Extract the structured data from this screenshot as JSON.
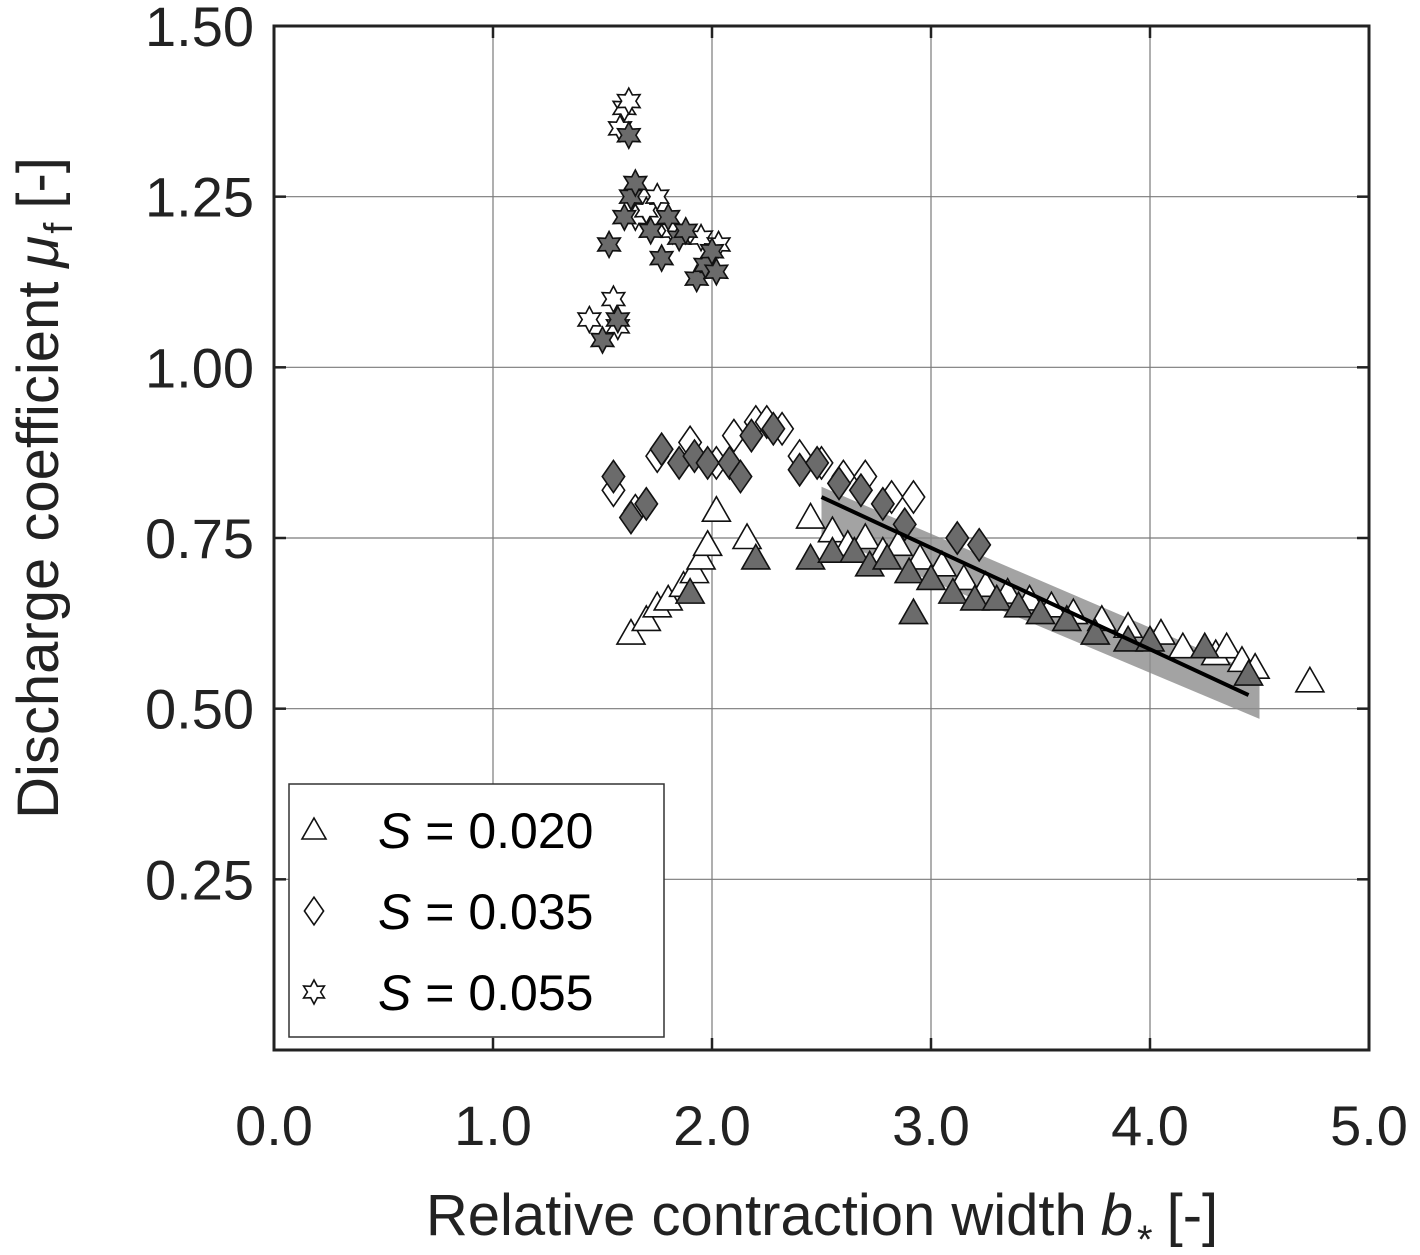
{
  "chart_data": {
    "type": "scatter",
    "title": "",
    "xlabel": "Relative contraction width",
    "xlabel_symbol": "b",
    "xlabel_subscript": "*",
    "xlabel_unit": "[-]",
    "ylabel": "Discharge coefficient",
    "ylabel_symbol": "μ",
    "ylabel_subscript": "f",
    "ylabel_unit": "[-]",
    "xlim": [
      0.0,
      5.0
    ],
    "ylim": [
      0.0,
      1.5
    ],
    "x_ticks": [
      "0.0",
      "1.0",
      "2.0",
      "3.0",
      "4.0",
      "5.0"
    ],
    "y_ticks": [
      "0.25",
      "0.50",
      "0.75",
      "1.00",
      "1.25",
      "1.50"
    ],
    "grid": true,
    "legend_position": "bottom-left",
    "legend": [
      {
        "prefix": "S",
        "text": " = 0.020",
        "marker": "triangle"
      },
      {
        "prefix": "S",
        "text": " = 0.035",
        "marker": "diamond"
      },
      {
        "prefix": "S",
        "text": " = 0.055",
        "marker": "star"
      }
    ],
    "fit_line": {
      "x": [
        2.5,
        4.45
      ],
      "y": [
        0.81,
        0.52
      ]
    },
    "fit_band": {
      "x": [
        2.5,
        4.5
      ],
      "y_upper": [
        0.825,
        0.55
      ],
      "y_lower": [
        0.755,
        0.485
      ]
    },
    "series": [
      {
        "marker": "triangle",
        "fill": "open",
        "x": [
          1.63,
          1.7,
          1.75,
          1.8,
          1.87,
          1.92,
          1.95,
          1.98,
          2.02,
          2.16,
          2.45,
          2.55,
          2.62,
          2.7,
          2.78,
          2.85,
          2.95,
          3.05,
          3.15,
          3.25,
          3.35,
          3.45,
          3.55,
          3.65,
          3.78,
          3.9,
          4.05,
          4.15,
          4.3,
          4.35,
          4.42,
          4.48,
          4.73
        ],
        "y": [
          0.61,
          0.63,
          0.65,
          0.66,
          0.68,
          0.7,
          0.72,
          0.74,
          0.79,
          0.75,
          0.78,
          0.76,
          0.74,
          0.75,
          0.73,
          0.74,
          0.72,
          0.71,
          0.69,
          0.68,
          0.67,
          0.66,
          0.65,
          0.64,
          0.63,
          0.62,
          0.61,
          0.59,
          0.58,
          0.59,
          0.57,
          0.56,
          0.54
        ]
      },
      {
        "marker": "triangle",
        "fill": "filled",
        "x": [
          1.9,
          2.2,
          2.45,
          2.55,
          2.65,
          2.72,
          2.8,
          2.9,
          2.92,
          3.0,
          3.1,
          3.2,
          3.3,
          3.4,
          3.5,
          3.62,
          3.75,
          3.9,
          4.0,
          4.25,
          4.45
        ],
        "y": [
          0.67,
          0.72,
          0.72,
          0.73,
          0.73,
          0.71,
          0.72,
          0.7,
          0.64,
          0.69,
          0.67,
          0.66,
          0.66,
          0.65,
          0.64,
          0.63,
          0.61,
          0.6,
          0.6,
          0.59,
          0.55
        ]
      },
      {
        "marker": "diamond",
        "fill": "open",
        "x": [
          1.55,
          1.65,
          1.75,
          1.9,
          2.02,
          2.1,
          2.2,
          2.25,
          2.32,
          2.4,
          2.5,
          2.6,
          2.7,
          2.82,
          2.92
        ],
        "y": [
          0.82,
          0.79,
          0.87,
          0.89,
          0.86,
          0.9,
          0.92,
          0.92,
          0.91,
          0.87,
          0.86,
          0.84,
          0.84,
          0.81,
          0.81
        ]
      },
      {
        "marker": "diamond",
        "fill": "filled",
        "x": [
          1.55,
          1.63,
          1.7,
          1.77,
          1.85,
          1.92,
          1.98,
          2.08,
          2.13,
          2.18,
          2.28,
          2.4,
          2.48,
          2.58,
          2.68,
          2.78,
          2.88,
          3.12,
          3.22
        ],
        "y": [
          0.84,
          0.78,
          0.8,
          0.88,
          0.86,
          0.87,
          0.86,
          0.86,
          0.84,
          0.9,
          0.91,
          0.85,
          0.86,
          0.83,
          0.82,
          0.8,
          0.77,
          0.75,
          0.74
        ]
      },
      {
        "marker": "star",
        "fill": "open",
        "x": [
          1.44,
          1.55,
          1.57,
          1.58,
          1.6,
          1.62,
          1.65,
          1.7,
          1.75,
          1.82,
          1.95,
          2.03
        ],
        "y": [
          1.07,
          1.1,
          1.06,
          1.35,
          1.38,
          1.39,
          1.22,
          1.23,
          1.25,
          1.2,
          1.19,
          1.18
        ]
      },
      {
        "marker": "star",
        "fill": "filled",
        "x": [
          1.5,
          1.53,
          1.57,
          1.6,
          1.62,
          1.63,
          1.65,
          1.72,
          1.77,
          1.8,
          1.85,
          1.88,
          1.93,
          1.97,
          2.0,
          2.02
        ],
        "y": [
          1.04,
          1.18,
          1.07,
          1.22,
          1.34,
          1.25,
          1.27,
          1.2,
          1.16,
          1.22,
          1.19,
          1.2,
          1.13,
          1.15,
          1.17,
          1.14
        ]
      }
    ]
  }
}
